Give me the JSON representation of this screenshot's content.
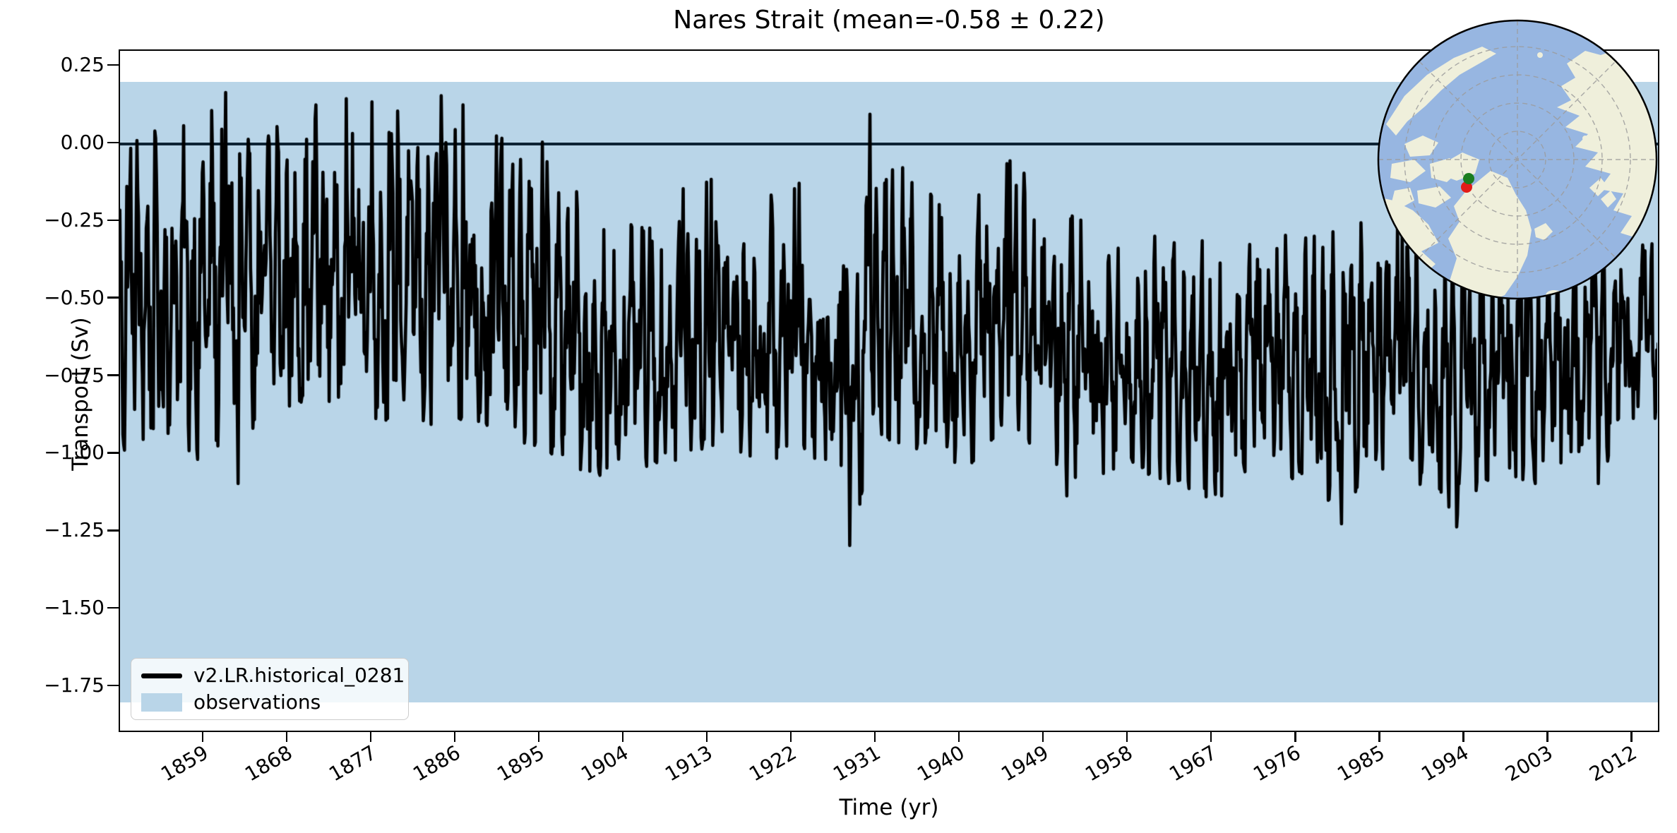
{
  "title": "Nares Strait (mean=-0.58 ± 0.22)",
  "axes": {
    "xlabel": "Time (yr)",
    "ylabel": "Transport (Sv)",
    "xlim": [
      1850,
      2015
    ],
    "ylim": [
      -1.9,
      0.3
    ],
    "xtick_values": [
      1859,
      1868,
      1877,
      1886,
      1895,
      1904,
      1913,
      1922,
      1931,
      1940,
      1949,
      1958,
      1967,
      1976,
      1985,
      1994,
      2003,
      2012
    ],
    "xtick_labels": [
      "1859",
      "1868",
      "1877",
      "1886",
      "1895",
      "1904",
      "1913",
      "1922",
      "1931",
      "1940",
      "1949",
      "1958",
      "1967",
      "1976",
      "1985",
      "1994",
      "2003",
      "2012"
    ],
    "ytick_values": [
      0.25,
      0.0,
      -0.25,
      -0.5,
      -0.75,
      -1.0,
      -1.25,
      -1.5,
      -1.75
    ],
    "ytick_labels": [
      "0.25",
      "0.00",
      "−0.25",
      "−0.50",
      "−0.75",
      "−1.00",
      "−1.25",
      "−1.50",
      "−1.75"
    ]
  },
  "legend": {
    "items": [
      {
        "label": "v2.LR.historical_0281",
        "type": "line",
        "color": "#000000"
      },
      {
        "label": "observations",
        "type": "patch",
        "color": "#b9d5e8"
      }
    ]
  },
  "chart_data": {
    "type": "line",
    "title": "Nares Strait (mean=-0.58 ± 0.22)",
    "xlabel": "Time (yr)",
    "ylabel": "Transport (Sv)",
    "xlim": [
      1850,
      2015
    ],
    "ylim": [
      -1.9,
      0.3
    ],
    "grid": false,
    "legend_position": "lower left",
    "stats": {
      "series_mean_sv": -0.58,
      "series_std_sv": 0.22
    },
    "zero_line": {
      "y": 0.0,
      "color": "#0d2334",
      "linewidth": 3.5
    },
    "observations_band": {
      "label": "observations",
      "ymin": -1.8,
      "ymax": 0.2,
      "color": "#b9d5e8"
    },
    "series": [
      {
        "name": "v2.LR.historical_0281",
        "color": "#000000",
        "linewidth": 4.6,
        "cadence": "monthly",
        "synthesis": {
          "seed": 1234,
          "start_year": 1850.0,
          "end_year": 2014.92,
          "points_per_year": 12,
          "ar_coeff": 0.45,
          "noise_scale": 1.15,
          "seasonal_amp": 0.45,
          "envelope_note": "breakpoints [year, mean, high, low] read from plot",
          "envelope": [
            [
              1850,
              -0.52,
              0.02,
              -1.0
            ],
            [
              1856,
              -0.5,
              0.05,
              -0.95
            ],
            [
              1861,
              -0.48,
              0.17,
              -1.1
            ],
            [
              1864,
              -0.52,
              0.02,
              -0.95
            ],
            [
              1869,
              -0.44,
              0.1,
              -0.85
            ],
            [
              1874,
              -0.42,
              0.14,
              -0.85
            ],
            [
              1878,
              -0.44,
              0.14,
              -0.9
            ],
            [
              1883,
              -0.48,
              0.1,
              -0.92
            ],
            [
              1887,
              -0.46,
              0.15,
              -0.9
            ],
            [
              1891,
              -0.55,
              0.02,
              -0.95
            ],
            [
              1896,
              -0.6,
              0.0,
              -1.0
            ],
            [
              1901,
              -0.7,
              -0.2,
              -1.08
            ],
            [
              1906,
              -0.72,
              -0.25,
              -1.05
            ],
            [
              1911,
              -0.67,
              -0.15,
              -1.02
            ],
            [
              1915,
              -0.62,
              -0.1,
              -0.98
            ],
            [
              1919,
              -0.66,
              -0.18,
              -1.05
            ],
            [
              1923,
              -0.63,
              -0.12,
              -1.0
            ],
            [
              1927,
              -0.7,
              -0.2,
              -1.15
            ],
            [
              1929,
              -0.7,
              -0.15,
              -1.25
            ],
            [
              1931,
              -0.55,
              0.05,
              -0.95
            ],
            [
              1936,
              -0.6,
              -0.15,
              -1.0
            ],
            [
              1941,
              -0.62,
              -0.18,
              -1.05
            ],
            [
              1945,
              -0.5,
              -0.06,
              -0.92
            ],
            [
              1949,
              -0.58,
              -0.15,
              -1.0
            ],
            [
              1953,
              -0.68,
              -0.25,
              -1.12
            ],
            [
              1958,
              -0.7,
              -0.28,
              -1.05
            ],
            [
              1963,
              -0.72,
              -0.3,
              -1.1
            ],
            [
              1967,
              -0.77,
              -0.32,
              -1.15
            ],
            [
              1972,
              -0.72,
              -0.28,
              -1.05
            ],
            [
              1977,
              -0.73,
              -0.3,
              -1.1
            ],
            [
              1981,
              -0.75,
              -0.28,
              -1.2
            ],
            [
              1985,
              -0.68,
              -0.24,
              -1.05
            ],
            [
              1989,
              -0.7,
              -0.26,
              -1.1
            ],
            [
              1993,
              -0.75,
              -0.3,
              -1.22
            ],
            [
              1997,
              -0.7,
              -0.27,
              -1.08
            ],
            [
              2001,
              -0.72,
              -0.3,
              -1.1
            ],
            [
              2005,
              -0.73,
              -0.28,
              -1.12
            ],
            [
              2009,
              -0.68,
              -0.25,
              -1.06
            ],
            [
              2014.92,
              -0.6,
              -0.3,
              -0.95
            ]
          ],
          "pinned_extremes": [
            [
              1851.3,
              -0.02
            ],
            [
              1861.5,
              0.16
            ],
            [
              1862.8,
              -1.1
            ],
            [
              1867.0,
              0.05
            ],
            [
              1871.2,
              0.12
            ],
            [
              1874.4,
              0.14
            ],
            [
              1877.2,
              0.13
            ],
            [
              1879.9,
              0.1
            ],
            [
              1884.6,
              0.15
            ],
            [
              1886.9,
              0.12
            ],
            [
              1890.5,
              0.02
            ],
            [
              1895.4,
              0.0
            ],
            [
              1902.3,
              -1.05
            ],
            [
              1910.5,
              -0.15
            ],
            [
              1913.5,
              -0.12
            ],
            [
              1922.4,
              -0.15
            ],
            [
              1928.3,
              -1.3
            ],
            [
              1930.5,
              0.09
            ],
            [
              1935.0,
              -0.13
            ],
            [
              1945.5,
              -0.06
            ],
            [
              1947.0,
              -0.1
            ],
            [
              1951.6,
              -1.14
            ],
            [
              1962.5,
              -1.1
            ],
            [
              1968.2,
              -1.14
            ],
            [
              1975.0,
              -0.3
            ],
            [
              1981.0,
              -1.23
            ],
            [
              1987.5,
              -0.28
            ],
            [
              1993.3,
              -1.24
            ],
            [
              1999.0,
              -1.05
            ],
            [
              2008.5,
              -1.1
            ],
            [
              2013.5,
              -0.35
            ]
          ]
        }
      }
    ]
  },
  "inset_map": {
    "projection": "north-polar",
    "ocean_color": "#97b6e1",
    "land_color": "#efefdb",
    "graticule_color": "#9c9c9c",
    "border_color": "#000000",
    "marker_green_color": "#1a7d1f",
    "marker_red_color": "#e21c18",
    "marker_location": "Nares Strait"
  }
}
